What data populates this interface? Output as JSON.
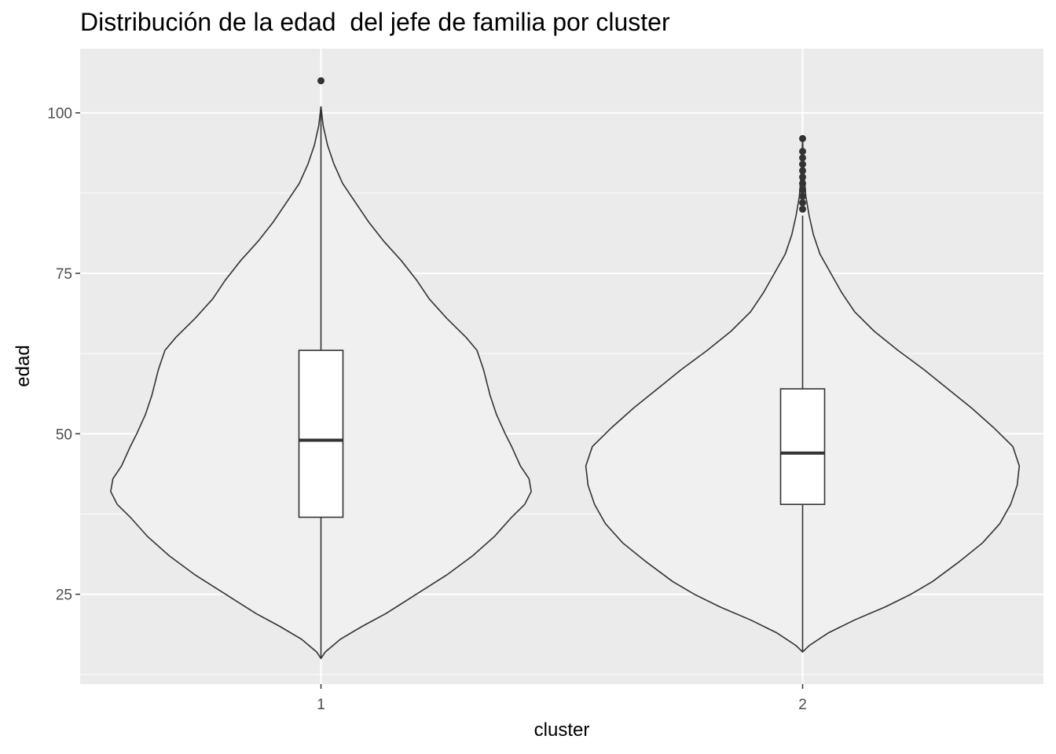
{
  "chart_data": {
    "type": "violin",
    "title": "Distribución de la edad  del jefe de familia por cluster",
    "xlabel": "cluster",
    "ylabel": "edad",
    "categories": [
      "1",
      "2"
    ],
    "ylim": [
      11,
      110
    ],
    "yticks": [
      25,
      50,
      75,
      100
    ],
    "grid": true,
    "colors": {
      "panel": "#ebebeb",
      "violin_fill": "#f0f0f0",
      "outline": "#333333",
      "box_fill": "#ffffff"
    },
    "series": [
      {
        "category": "1",
        "box": {
          "q1": 37,
          "median": 49,
          "q3": 63,
          "whisker_low": 15,
          "whisker_high": 101
        },
        "outliers": [
          105
        ],
        "density": [
          [
            15,
            0.0
          ],
          [
            16,
            0.02
          ],
          [
            18,
            0.09
          ],
          [
            20,
            0.19
          ],
          [
            22,
            0.3
          ],
          [
            25,
            0.44
          ],
          [
            28,
            0.58
          ],
          [
            31,
            0.7
          ],
          [
            34,
            0.8
          ],
          [
            37,
            0.88
          ],
          [
            39,
            0.94
          ],
          [
            41,
            0.97
          ],
          [
            43,
            0.96
          ],
          [
            45,
            0.92
          ],
          [
            48,
            0.88
          ],
          [
            50,
            0.85
          ],
          [
            53,
            0.81
          ],
          [
            56,
            0.78
          ],
          [
            60,
            0.75
          ],
          [
            63,
            0.72
          ],
          [
            65,
            0.67
          ],
          [
            68,
            0.58
          ],
          [
            71,
            0.5
          ],
          [
            74,
            0.44
          ],
          [
            77,
            0.37
          ],
          [
            80,
            0.29
          ],
          [
            83,
            0.22
          ],
          [
            86,
            0.16
          ],
          [
            89,
            0.1
          ],
          [
            92,
            0.06
          ],
          [
            95,
            0.03
          ],
          [
            98,
            0.01
          ],
          [
            101,
            0.0
          ]
        ]
      },
      {
        "category": "2",
        "box": {
          "q1": 39,
          "median": 47,
          "q3": 57,
          "whisker_low": 16,
          "whisker_high": 84
        },
        "outliers": [
          85,
          86,
          87,
          88,
          89,
          90,
          91,
          92,
          93,
          94,
          96
        ],
        "density": [
          [
            16,
            0.0
          ],
          [
            17,
            0.03
          ],
          [
            19,
            0.12
          ],
          [
            21,
            0.24
          ],
          [
            23,
            0.38
          ],
          [
            25,
            0.5
          ],
          [
            27,
            0.6
          ],
          [
            30,
            0.72
          ],
          [
            33,
            0.83
          ],
          [
            36,
            0.91
          ],
          [
            39,
            0.96
          ],
          [
            42,
            0.99
          ],
          [
            45,
            1.0
          ],
          [
            48,
            0.97
          ],
          [
            51,
            0.88
          ],
          [
            54,
            0.78
          ],
          [
            57,
            0.67
          ],
          [
            60,
            0.56
          ],
          [
            63,
            0.44
          ],
          [
            66,
            0.33
          ],
          [
            69,
            0.24
          ],
          [
            72,
            0.18
          ],
          [
            75,
            0.13
          ],
          [
            78,
            0.08
          ],
          [
            81,
            0.05
          ],
          [
            84,
            0.03
          ],
          [
            87,
            0.015
          ],
          [
            90,
            0.008
          ],
          [
            93,
            0.003
          ],
          [
            96,
            0.0
          ]
        ]
      }
    ]
  }
}
